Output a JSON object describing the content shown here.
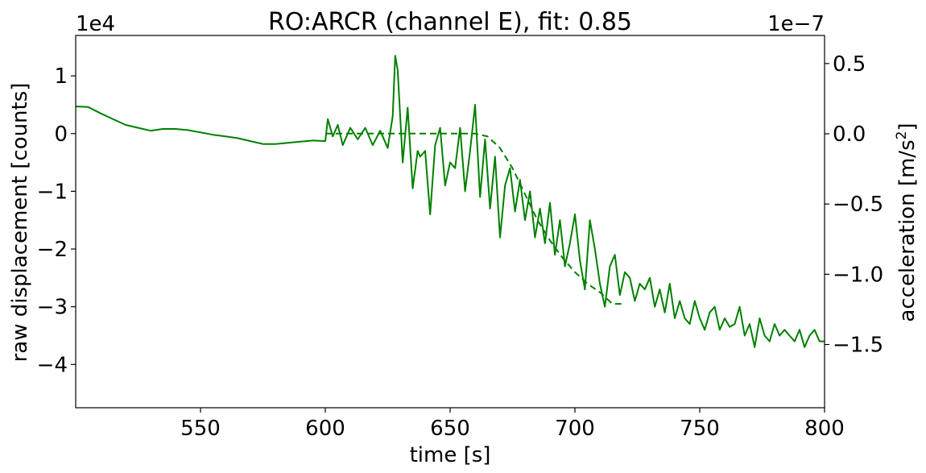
{
  "chart_data": {
    "type": "line",
    "title": "RO:ARCR  (channel E), fit: 0.85",
    "xlabel": "time [s]",
    "ylabel_left": "raw displacement [counts]",
    "ylabel_right_prefix": "acceleration [m/s",
    "ylabel_right_sup": "2",
    "ylabel_right_suffix": "]",
    "left_multiplier": "1e4",
    "right_multiplier": "1e−7",
    "xlim": [
      500,
      800
    ],
    "ylim_left": [
      -4.75,
      1.7
    ],
    "ylim_right": [
      -1.95,
      0.7
    ],
    "x_ticks": [
      {
        "value": 550,
        "label": "550"
      },
      {
        "value": 600,
        "label": "600"
      },
      {
        "value": 650,
        "label": "650"
      },
      {
        "value": 700,
        "label": "700"
      },
      {
        "value": 750,
        "label": "750"
      },
      {
        "value": 800,
        "label": "800"
      }
    ],
    "y_ticks_left": [
      {
        "value": 1,
        "label": "1"
      },
      {
        "value": 0,
        "label": "0"
      },
      {
        "value": -1,
        "label": "−1"
      },
      {
        "value": -2,
        "label": "−2"
      },
      {
        "value": -3,
        "label": "−3"
      },
      {
        "value": -4,
        "label": "−4"
      }
    ],
    "y_ticks_right": [
      {
        "value": 0.5,
        "label": "0.5"
      },
      {
        "value": 0.0,
        "label": "0.0"
      },
      {
        "value": -0.5,
        "label": "−0.5"
      },
      {
        "value": -1.0,
        "label": "−1.0"
      },
      {
        "value": -1.5,
        "label": "−1.5"
      }
    ],
    "grid": false,
    "color": "#008000",
    "series": [
      {
        "style": "solid",
        "axis": "left",
        "x": [
          500,
          505,
          510,
          515,
          520,
          525,
          530,
          535,
          540,
          545,
          550,
          555,
          560,
          565,
          570,
          575,
          580,
          585,
          590,
          595,
          600,
          601,
          603,
          605,
          607,
          610,
          613,
          616,
          619,
          622,
          625,
          627,
          628,
          629,
          631,
          633,
          635,
          637,
          638,
          640,
          642,
          644,
          646,
          648,
          650,
          652,
          654,
          656,
          658,
          660,
          662,
          664,
          666,
          668,
          670,
          672,
          674,
          676,
          678,
          680,
          682,
          684,
          686,
          688,
          690,
          692,
          694,
          696,
          698,
          700,
          702,
          704,
          706,
          708,
          710,
          712,
          714,
          716,
          718,
          720,
          722,
          724,
          726,
          728,
          730,
          732,
          734,
          736,
          738,
          740,
          742,
          744,
          746,
          748,
          750,
          752,
          754,
          756,
          758,
          760,
          762,
          764,
          766,
          768,
          770,
          772,
          774,
          776,
          778,
          780,
          782,
          784,
          786,
          788,
          790,
          792,
          794,
          796,
          798,
          800
        ],
        "y": [
          0.47,
          0.46,
          0.35,
          0.25,
          0.15,
          0.1,
          0.05,
          0.08,
          0.08,
          0.06,
          0.02,
          -0.02,
          -0.05,
          -0.08,
          -0.13,
          -0.18,
          -0.18,
          -0.16,
          -0.14,
          -0.12,
          -0.13,
          0.25,
          -0.05,
          0.15,
          -0.2,
          0.1,
          -0.1,
          0.1,
          -0.2,
          0.05,
          -0.25,
          0.3,
          1.35,
          1.1,
          -0.5,
          0.45,
          -0.95,
          -0.3,
          -0.4,
          -0.3,
          -1.4,
          -0.2,
          0.1,
          -0.9,
          -0.5,
          -0.6,
          0.1,
          -1.0,
          -0.3,
          0.5,
          -1.1,
          -0.1,
          -1.3,
          -0.4,
          -1.8,
          -0.9,
          -0.6,
          -1.35,
          -0.8,
          -1.5,
          -1.0,
          -1.8,
          -1.3,
          -1.9,
          -1.2,
          -2.1,
          -1.5,
          -2.3,
          -1.9,
          -1.4,
          -2.2,
          -2.7,
          -1.5,
          -2.0,
          -2.6,
          -3.0,
          -2.3,
          -2.1,
          -2.8,
          -2.4,
          -2.5,
          -2.9,
          -2.6,
          -2.7,
          -2.5,
          -3.0,
          -2.7,
          -3.1,
          -2.6,
          -3.2,
          -2.9,
          -3.2,
          -3.3,
          -2.9,
          -3.2,
          -3.4,
          -3.1,
          -3.0,
          -3.4,
          -3.2,
          -3.35,
          -3.3,
          -3.0,
          -3.5,
          -3.3,
          -3.7,
          -3.2,
          -3.5,
          -3.6,
          -3.3,
          -3.5,
          -3.4,
          -3.5,
          -3.6,
          -3.4,
          -3.7,
          -3.5,
          -3.4,
          -3.6,
          -3.6
        ]
      },
      {
        "style": "dashed",
        "axis": "left",
        "x": [
          600,
          610,
          620,
          630,
          640,
          650,
          655,
          660,
          665,
          670,
          675,
          680,
          685,
          690,
          695,
          700,
          705,
          710,
          715,
          720
        ],
        "y": [
          0.0,
          0.0,
          0.0,
          0.0,
          0.0,
          0.0,
          0.0,
          0.0,
          -0.05,
          -0.25,
          -0.6,
          -1.05,
          -1.5,
          -1.85,
          -2.15,
          -2.4,
          -2.6,
          -2.75,
          -2.95,
          -2.95
        ]
      }
    ]
  }
}
